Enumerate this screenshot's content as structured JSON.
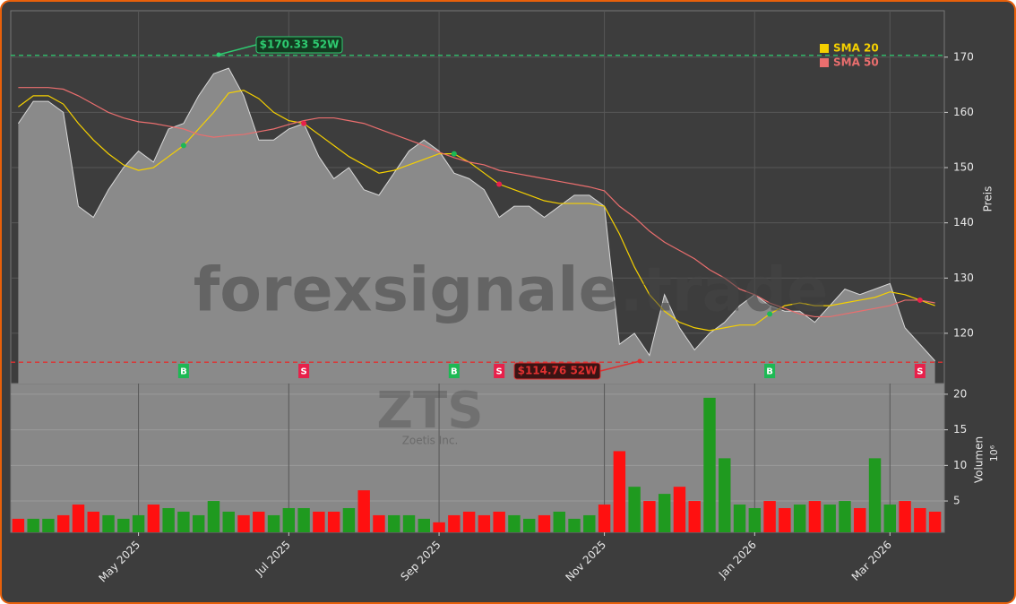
{
  "chart_data": [
    {
      "type": "area",
      "watermark": "forexsignale.trade",
      "y_label": "Preis",
      "values": [
        158,
        162,
        162,
        160,
        143,
        141,
        146,
        150,
        153,
        151,
        157,
        158,
        163,
        167,
        168,
        163,
        155,
        155,
        157,
        158,
        152,
        148,
        150,
        146,
        145,
        149,
        153,
        155,
        153,
        149,
        148,
        146,
        141,
        143,
        143,
        141,
        143,
        145,
        145,
        143,
        118,
        120,
        116,
        127,
        121,
        117,
        120,
        122,
        125,
        127,
        125,
        124,
        124,
        122,
        125,
        128,
        127,
        128,
        129,
        121,
        118,
        115
      ],
      "area_color": "#8a8a8a",
      "series": [
        {
          "name": "SMA 20",
          "color": "#f5d000",
          "values": [
            161,
            163,
            163,
            161.5,
            158,
            155,
            152.5,
            150.5,
            149.5,
            150,
            152,
            154,
            157,
            160,
            163.5,
            164,
            162.5,
            160,
            158.5,
            158,
            156,
            154,
            152,
            150.5,
            149,
            149.5,
            150.5,
            151.5,
            152.5,
            152.5,
            151,
            149,
            147,
            146,
            145,
            144,
            143.5,
            143.5,
            143.5,
            143,
            138,
            132,
            127,
            124,
            122,
            121,
            120.5,
            121,
            121.5,
            121.5,
            123.5,
            125,
            125.5,
            125,
            125,
            125.5,
            126,
            126.5,
            127.5,
            127,
            126,
            125
          ]
        },
        {
          "name": "SMA 50",
          "color": "#ea6e6e",
          "values": [
            164.5,
            164.5,
            164.5,
            164.2,
            163,
            161.5,
            160,
            159,
            158.3,
            158,
            157.5,
            157,
            156,
            155.5,
            155.8,
            156,
            156.5,
            157,
            157.8,
            158.5,
            159,
            159,
            158.5,
            158,
            157,
            156,
            155,
            154,
            152.8,
            151.8,
            151,
            150.5,
            149.5,
            149,
            148.5,
            148,
            147.5,
            147,
            146.5,
            145.8,
            143,
            141,
            138.5,
            136.5,
            135,
            133.5,
            131.5,
            130,
            128,
            127,
            125.5,
            124.5,
            123.5,
            123,
            123,
            123.5,
            124,
            124.5,
            125,
            126,
            126,
            125.5
          ]
        }
      ],
      "signals": [
        null,
        null,
        null,
        null,
        null,
        null,
        null,
        null,
        null,
        null,
        null,
        "B",
        null,
        null,
        null,
        null,
        null,
        null,
        null,
        "S",
        null,
        null,
        null,
        null,
        null,
        null,
        null,
        null,
        null,
        "B",
        null,
        null,
        "S",
        null,
        null,
        null,
        null,
        null,
        null,
        null,
        null,
        null,
        null,
        null,
        null,
        null,
        null,
        null,
        null,
        null,
        "B",
        null,
        null,
        null,
        null,
        null,
        null,
        null,
        null,
        null,
        "S",
        null
      ],
      "annotations": [
        {
          "value": 170.33,
          "label": "$170.33 52W",
          "color": "#2ecc71"
        },
        {
          "value": 114.76,
          "label": "$114.76 52W",
          "color": "#e03030"
        }
      ],
      "ylim": [
        110.9,
        178.4
      ],
      "yticks": [
        120,
        130,
        140,
        150,
        160,
        170
      ],
      "grid": true
    },
    {
      "type": "bar",
      "title": "ZTS",
      "subtitle": "Zoetis Inc.",
      "y_label": "Volumen",
      "y_unit": "10⁶",
      "categories": [
        null,
        null,
        null,
        null,
        null,
        null,
        null,
        null,
        "May 2025",
        null,
        null,
        null,
        null,
        null,
        null,
        null,
        null,
        null,
        "Jul 2025",
        null,
        null,
        null,
        null,
        null,
        null,
        null,
        null,
        null,
        "Sep 2025",
        null,
        null,
        null,
        null,
        null,
        null,
        null,
        null,
        null,
        null,
        "Nov 2025",
        null,
        null,
        null,
        null,
        null,
        null,
        null,
        null,
        null,
        "Jan 2026",
        null,
        null,
        null,
        null,
        null,
        null,
        null,
        null,
        "Mar 2026",
        null,
        null,
        null
      ],
      "values": [
        2.5,
        2.5,
        2.5,
        3,
        4.5,
        3.5,
        3,
        2.5,
        3,
        4.5,
        4,
        3.5,
        3,
        5,
        3.5,
        3,
        3.5,
        3,
        4,
        4,
        3.5,
        3.5,
        4,
        6.5,
        3,
        3,
        3,
        2.5,
        2,
        3,
        3.5,
        3,
        3.5,
        3,
        2.5,
        3,
        3.5,
        2.5,
        3,
        4.5,
        12,
        7,
        5,
        6,
        7,
        5,
        19.5,
        11,
        4.5,
        4,
        5,
        4,
        4.5,
        5,
        4.5,
        5,
        4,
        11,
        4.5,
        5,
        4,
        3.5
      ],
      "up_color": "#1f9a1f",
      "down_color": "#ff1010",
      "ylim": [
        0.6,
        21.5
      ],
      "yticks": [
        5,
        10,
        15,
        20
      ],
      "grid": true
    }
  ]
}
